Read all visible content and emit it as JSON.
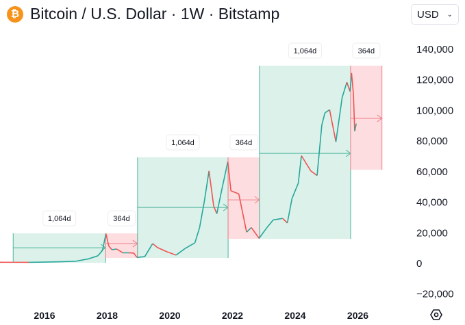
{
  "header": {
    "title": "Bitcoin / U.S. Dollar · 1W · Bitstamp",
    "symbol_icon": "bitcoin-icon",
    "icon_glyph": "₿",
    "currency": "USD"
  },
  "settings_icon": "hexagon-settings-icon",
  "colors": {
    "up": "#26a69a",
    "down": "#ef5350",
    "green_box": "#dbf1ea",
    "red_box": "#fddde0",
    "green_edge": "#4cb69d",
    "red_edge": "#f0808a"
  },
  "chart_data": {
    "type": "line",
    "title": "Bitcoin / U.S. Dollar · 1W · Bitstamp",
    "xlabel": "",
    "ylabel": "",
    "xlim": [
      2014.05,
      2028.4
    ],
    "ylim": [
      -26000,
      158000
    ],
    "x_ticks": [
      {
        "v": 2016,
        "label": "2016"
      },
      {
        "v": 2018,
        "label": "2018"
      },
      {
        "v": 2020,
        "label": "2020"
      },
      {
        "v": 2022,
        "label": "2022"
      },
      {
        "v": 2024,
        "label": "2024"
      },
      {
        "v": 2026,
        "label": "2026"
      }
    ],
    "y_ticks": [
      {
        "v": 140000,
        "label": "140,000"
      },
      {
        "v": 120000,
        "label": "120,000"
      },
      {
        "v": 100000,
        "label": "100,000"
      },
      {
        "v": 80000,
        "label": "80,000"
      },
      {
        "v": 60000,
        "label": "60,000"
      },
      {
        "v": 40000,
        "label": "40,000"
      },
      {
        "v": 20000,
        "label": "20,000"
      },
      {
        "v": 0,
        "label": "0"
      },
      {
        "v": -20000,
        "label": "−20,000"
      }
    ],
    "price": [
      [
        2014.05,
        300
      ],
      [
        2015.0,
        280
      ],
      [
        2015.5,
        260
      ],
      [
        2016.0,
        430
      ],
      [
        2016.5,
        650
      ],
      [
        2017.0,
        1000
      ],
      [
        2017.4,
        2500
      ],
      [
        2017.7,
        4500
      ],
      [
        2017.85,
        8000
      ],
      [
        2017.96,
        19000
      ],
      [
        2018.05,
        11000
      ],
      [
        2018.15,
        8500
      ],
      [
        2018.3,
        9000
      ],
      [
        2018.5,
        6500
      ],
      [
        2018.7,
        6500
      ],
      [
        2018.85,
        6300
      ],
      [
        2018.95,
        3500
      ],
      [
        2019.2,
        4000
      ],
      [
        2019.45,
        12500
      ],
      [
        2019.6,
        10000
      ],
      [
        2019.9,
        7200
      ],
      [
        2020.2,
        5000
      ],
      [
        2020.5,
        9500
      ],
      [
        2020.8,
        13000
      ],
      [
        2020.95,
        23000
      ],
      [
        2021.1,
        40000
      ],
      [
        2021.25,
        60000
      ],
      [
        2021.4,
        37000
      ],
      [
        2021.5,
        32000
      ],
      [
        2021.65,
        47000
      ],
      [
        2021.85,
        66000
      ],
      [
        2021.95,
        47000
      ],
      [
        2022.2,
        45000
      ],
      [
        2022.45,
        20000
      ],
      [
        2022.6,
        23000
      ],
      [
        2022.85,
        16000
      ],
      [
        2023.1,
        23000
      ],
      [
        2023.3,
        28000
      ],
      [
        2023.6,
        29000
      ],
      [
        2023.75,
        26000
      ],
      [
        2023.9,
        42000
      ],
      [
        2024.1,
        52000
      ],
      [
        2024.2,
        70000
      ],
      [
        2024.5,
        60000
      ],
      [
        2024.7,
        57000
      ],
      [
        2024.85,
        90000
      ],
      [
        2024.95,
        98000
      ],
      [
        2025.1,
        100000
      ],
      [
        2025.3,
        79000
      ],
      [
        2025.5,
        108000
      ],
      [
        2025.65,
        118000
      ],
      [
        2025.75,
        112000
      ],
      [
        2025.8,
        124000
      ],
      [
        2025.86,
        110000
      ],
      [
        2025.9,
        86000
      ],
      [
        2025.95,
        91000
      ]
    ],
    "cycles": [
      {
        "bull": {
          "start": 2015.0,
          "end": 2017.95,
          "low": 0,
          "high": 19200,
          "arrow": 9800,
          "label": "1,064d"
        },
        "bear": {
          "start": 2017.95,
          "end": 2018.97,
          "low": 3100,
          "high": 19200,
          "arrow": 12500,
          "label": "364d"
        }
      },
      {
        "bull": {
          "start": 2018.97,
          "end": 2021.86,
          "low": 3100,
          "high": 68900,
          "arrow": 36200,
          "label": "1,064d"
        },
        "bear": {
          "start": 2021.86,
          "end": 2022.86,
          "low": 15600,
          "high": 68900,
          "arrow": 41100,
          "label": "364d"
        }
      },
      {
        "bull": {
          "start": 2022.86,
          "end": 2025.77,
          "low": 15600,
          "high": 128800,
          "arrow": 71500,
          "label": "1,064d"
        },
        "bear": {
          "start": 2025.77,
          "end": 2026.77,
          "low": 60800,
          "high": 128800,
          "arrow": 94400,
          "label": "364d"
        }
      }
    ]
  }
}
